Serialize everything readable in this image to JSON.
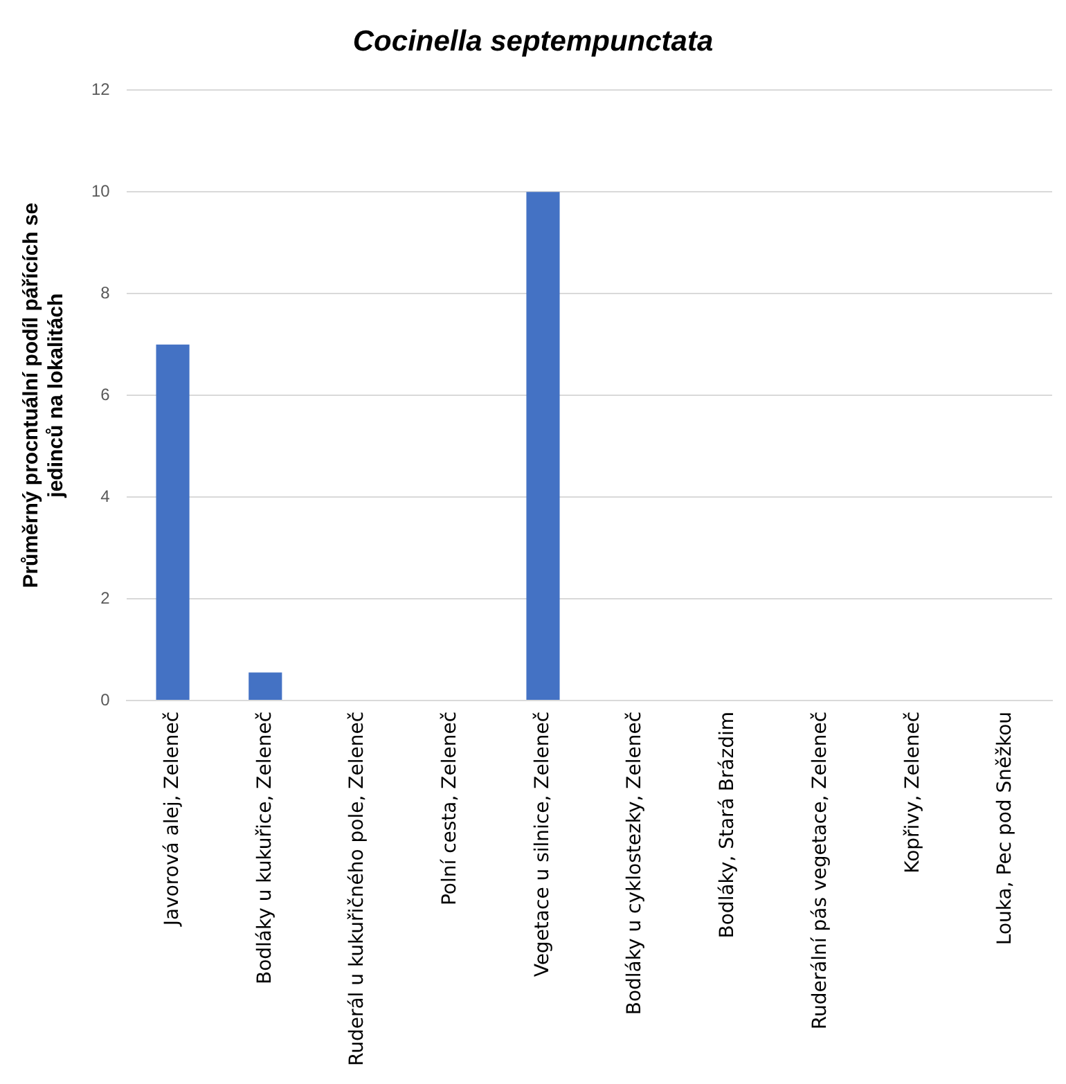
{
  "chart_data": {
    "type": "bar",
    "title": "Cocinella septempunctata",
    "ylabel": "Průměrný procntuální podíl pářících se jedinců na lokalitách",
    "categories": [
      "Javorová alej, Zeleneč",
      "Bodláky u kukuřice, Zeleneč",
      "Ruderál u kukuřičného pole, Zeleneč",
      "Polní cesta, Zeleneč",
      "Vegetace u silnice, Zeleneč",
      "Bodláky u cyklostezky, Zeleneč",
      "Bodláky, Stará Brázdim",
      "Ruderální pás vegetace, Zeleneč",
      "Kopřivy, Zeleneč",
      "Louka, Pec pod Sněžkou"
    ],
    "values": [
      7,
      0.55,
      0,
      0,
      10,
      0,
      0,
      0,
      0,
      0
    ],
    "color": "#4472c4",
    "ylim": [
      0,
      12
    ],
    "yticks": [
      0,
      2,
      4,
      6,
      8,
      10,
      12
    ],
    "grid": "y",
    "legend": false
  }
}
